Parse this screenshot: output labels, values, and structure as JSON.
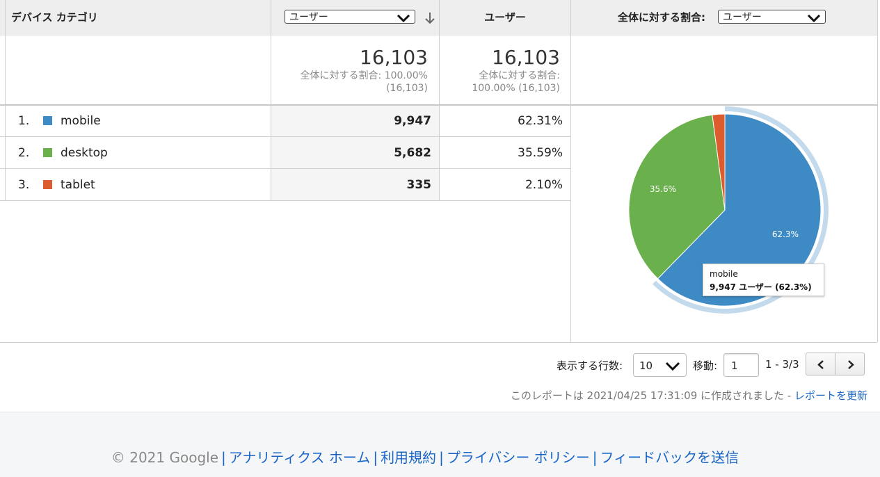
{
  "header": {
    "device_category": "デバイス カテゴリ",
    "metric_select_value": "ユーザー",
    "users_col": "ユーザー",
    "percent_label": "全体に対する割合:",
    "percent_select_value": "ユーザー"
  },
  "totals": {
    "col1_value": "16,103",
    "col1_sub1": "全体に対する割合: 100.00%",
    "col1_sub2": "(16,103)",
    "col2_value": "16,103",
    "col2_sub1": "全体に対する割合:",
    "col2_sub2": "100.00% (16,103)"
  },
  "rows": [
    {
      "index": "1.",
      "name": "mobile",
      "users": "9,947",
      "percent": "62.31%",
      "color": "#3d8ac4"
    },
    {
      "index": "2.",
      "name": "desktop",
      "users": "5,682",
      "percent": "35.59%",
      "color": "#6ab04c"
    },
    {
      "index": "3.",
      "name": "tablet",
      "users": "335",
      "percent": "2.10%",
      "color": "#dc5c2d"
    }
  ],
  "chart_data": {
    "type": "pie",
    "categories": [
      "mobile",
      "desktop",
      "tablet"
    ],
    "values": [
      62.31,
      35.59,
      2.1
    ],
    "labels": [
      "62.3%",
      "35.6%",
      ""
    ],
    "colors": [
      "#3d8ac4",
      "#6ab04c",
      "#dc5c2d"
    ],
    "tooltip": {
      "title": "mobile",
      "body": "9,947 ユーザー (62.3%)"
    }
  },
  "pagination": {
    "rows_label": "表示する行数:",
    "rows_value": "10",
    "goto_label": "移動:",
    "goto_value": "1",
    "range": "1 - 3/3"
  },
  "report_note": {
    "text": "このレポートは 2021/04/25 17:31:09 に作成されました -",
    "refresh_link": "レポートを更新"
  },
  "footer": {
    "copyright": "© 2021 Google",
    "links": [
      "アナリティクス ホーム",
      "利用規約",
      "プライバシー ポリシー",
      "フィードバックを送信"
    ]
  }
}
